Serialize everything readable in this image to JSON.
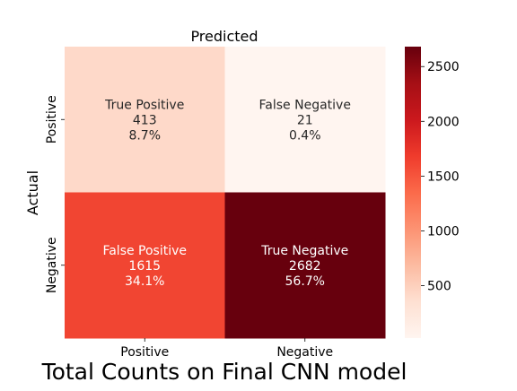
{
  "chart_data": {
    "type": "heatmap",
    "title": "Total Counts on Final CNN model",
    "top_label": "Predicted",
    "ylabel": "Actual",
    "x_categories": [
      "Positive",
      "Negative"
    ],
    "y_categories": [
      "Positive",
      "Negative"
    ],
    "cells": [
      [
        {
          "name": "True Positive",
          "count": 413,
          "count_label": "413",
          "percent_label": "8.7%"
        },
        {
          "name": "False Negative",
          "count": 21,
          "count_label": "21",
          "percent_label": "0.4%"
        }
      ],
      [
        {
          "name": "False Positive",
          "count": 1615,
          "count_label": "1615",
          "percent_label": "34.1%"
        },
        {
          "name": "True Negative",
          "count": 2682,
          "count_label": "2682",
          "percent_label": "56.7%"
        }
      ]
    ],
    "colorbar": {
      "colormap": "Reds",
      "vmin": 21,
      "vmax": 2682,
      "ticks": [
        500,
        1000,
        1500,
        2000,
        2500
      ],
      "tick_labels": [
        "500",
        "1000",
        "1500",
        "2000",
        "2500"
      ]
    },
    "colors": {
      "stops": [
        "#fff5f0",
        "#fee0d2",
        "#fcbba1",
        "#fc9272",
        "#fb6a4a",
        "#ef3b2c",
        "#cb181d",
        "#a50f15",
        "#67000d"
      ],
      "text_dark": "#262626",
      "text_light": "#ffffff"
    }
  }
}
